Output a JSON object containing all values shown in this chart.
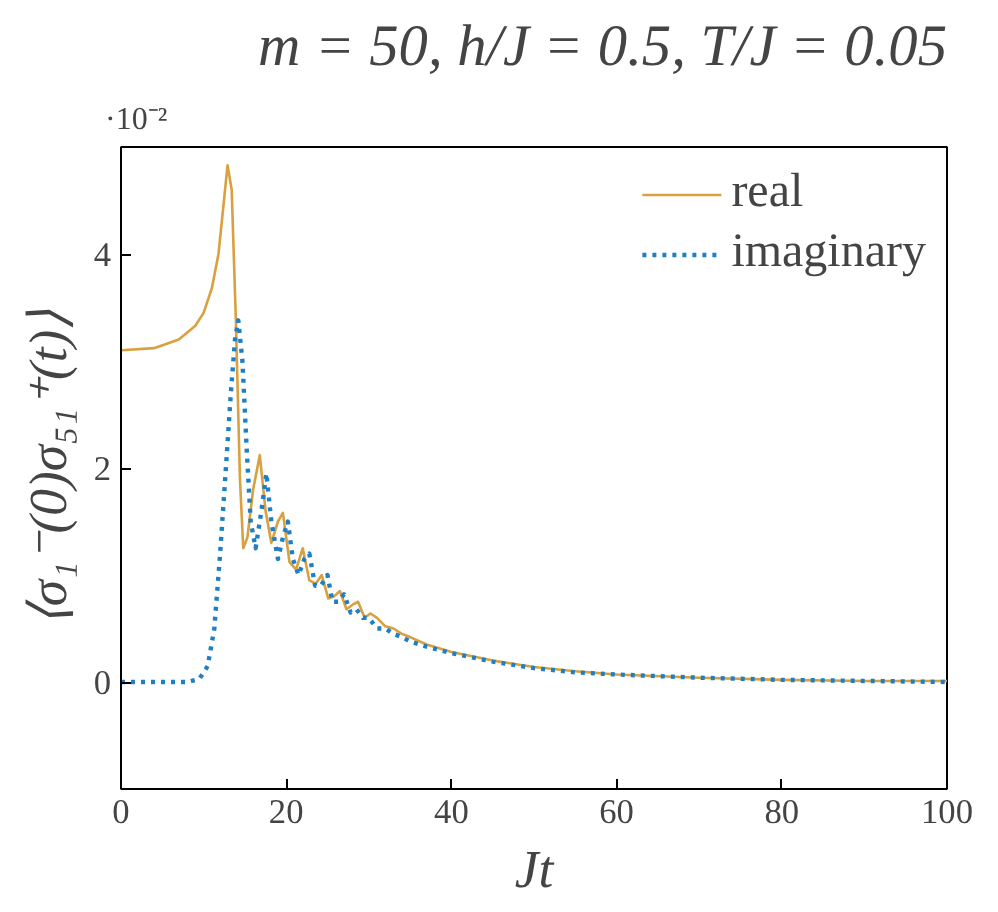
{
  "chart_data": {
    "type": "line",
    "title": "m = 50, h/J = 0.5, T/J = 0.05",
    "xlabel": "Jt",
    "ylabel": "⟨σ₁⁻(0)σ₅₁⁺(t)⟩",
    "annotations": [
      "·10⁻²"
    ],
    "xlim": [
      0,
      100
    ],
    "xticks": [
      0,
      20,
      40,
      60,
      80,
      100
    ],
    "ylim": [
      -1,
      5
    ],
    "yticks": [
      0,
      2,
      4
    ],
    "grid": false,
    "legend": "top right",
    "series": [
      {
        "name": "real",
        "color": "#d9a03f",
        "line_style": "solid",
        "x": [
          0,
          4,
          7,
          9,
          10,
          11,
          11.8,
          12.4,
          12.9,
          13.4,
          13.9,
          14.4,
          14.8,
          15.3,
          16,
          16.8,
          17.5,
          18.2,
          19,
          19.6,
          20.4,
          21.2,
          22,
          22.8,
          23.6,
          24.3,
          25.1,
          25.8,
          26.5,
          27.3,
          28,
          28.7,
          29.5,
          30.2,
          31,
          32,
          33,
          34,
          35,
          37,
          40,
          45,
          50,
          55,
          60,
          70,
          80,
          90,
          100
        ],
        "values": [
          3.1,
          3.12,
          3.2,
          3.33,
          3.45,
          3.68,
          4.0,
          4.45,
          4.83,
          4.6,
          3.4,
          1.9,
          1.25,
          1.35,
          1.8,
          2.12,
          1.6,
          1.3,
          1.5,
          1.58,
          1.12,
          1.05,
          1.25,
          0.95,
          0.92,
          1.0,
          0.78,
          0.8,
          0.85,
          0.68,
          0.72,
          0.75,
          0.6,
          0.64,
          0.6,
          0.52,
          0.5,
          0.45,
          0.42,
          0.35,
          0.28,
          0.2,
          0.14,
          0.1,
          0.07,
          0.04,
          0.02,
          0.01,
          0.01
        ]
      },
      {
        "name": "imaginary",
        "color": "#1f7fc4",
        "line_style": "dotted",
        "x": [
          0,
          5,
          8,
          9.5,
          10.5,
          11.3,
          12,
          12.7,
          13.3,
          13.8,
          14.2,
          14.7,
          15.2,
          15.7,
          16.3,
          17,
          17.6,
          18.2,
          19,
          19.6,
          20.2,
          20.8,
          21.5,
          22.2,
          22.8,
          23.5,
          24.2,
          25,
          25.6,
          26.3,
          27,
          27.8,
          28.5,
          29.3,
          30,
          31,
          32,
          33,
          34,
          35,
          37,
          40,
          45,
          50,
          55,
          60,
          70,
          80,
          90,
          100
        ],
        "values": [
          0,
          0,
          0,
          0.03,
          0.15,
          0.5,
          1.2,
          2.0,
          2.7,
          3.2,
          3.38,
          3.0,
          2.2,
          1.5,
          1.25,
          1.6,
          1.95,
          1.5,
          1.15,
          1.35,
          1.5,
          1.15,
          1.0,
          1.15,
          1.2,
          0.9,
          0.9,
          1.0,
          0.75,
          0.75,
          0.82,
          0.65,
          0.68,
          0.6,
          0.6,
          0.5,
          0.5,
          0.45,
          0.42,
          0.38,
          0.33,
          0.27,
          0.19,
          0.13,
          0.09,
          0.07,
          0.04,
          0.02,
          0.01,
          0
        ]
      }
    ]
  }
}
